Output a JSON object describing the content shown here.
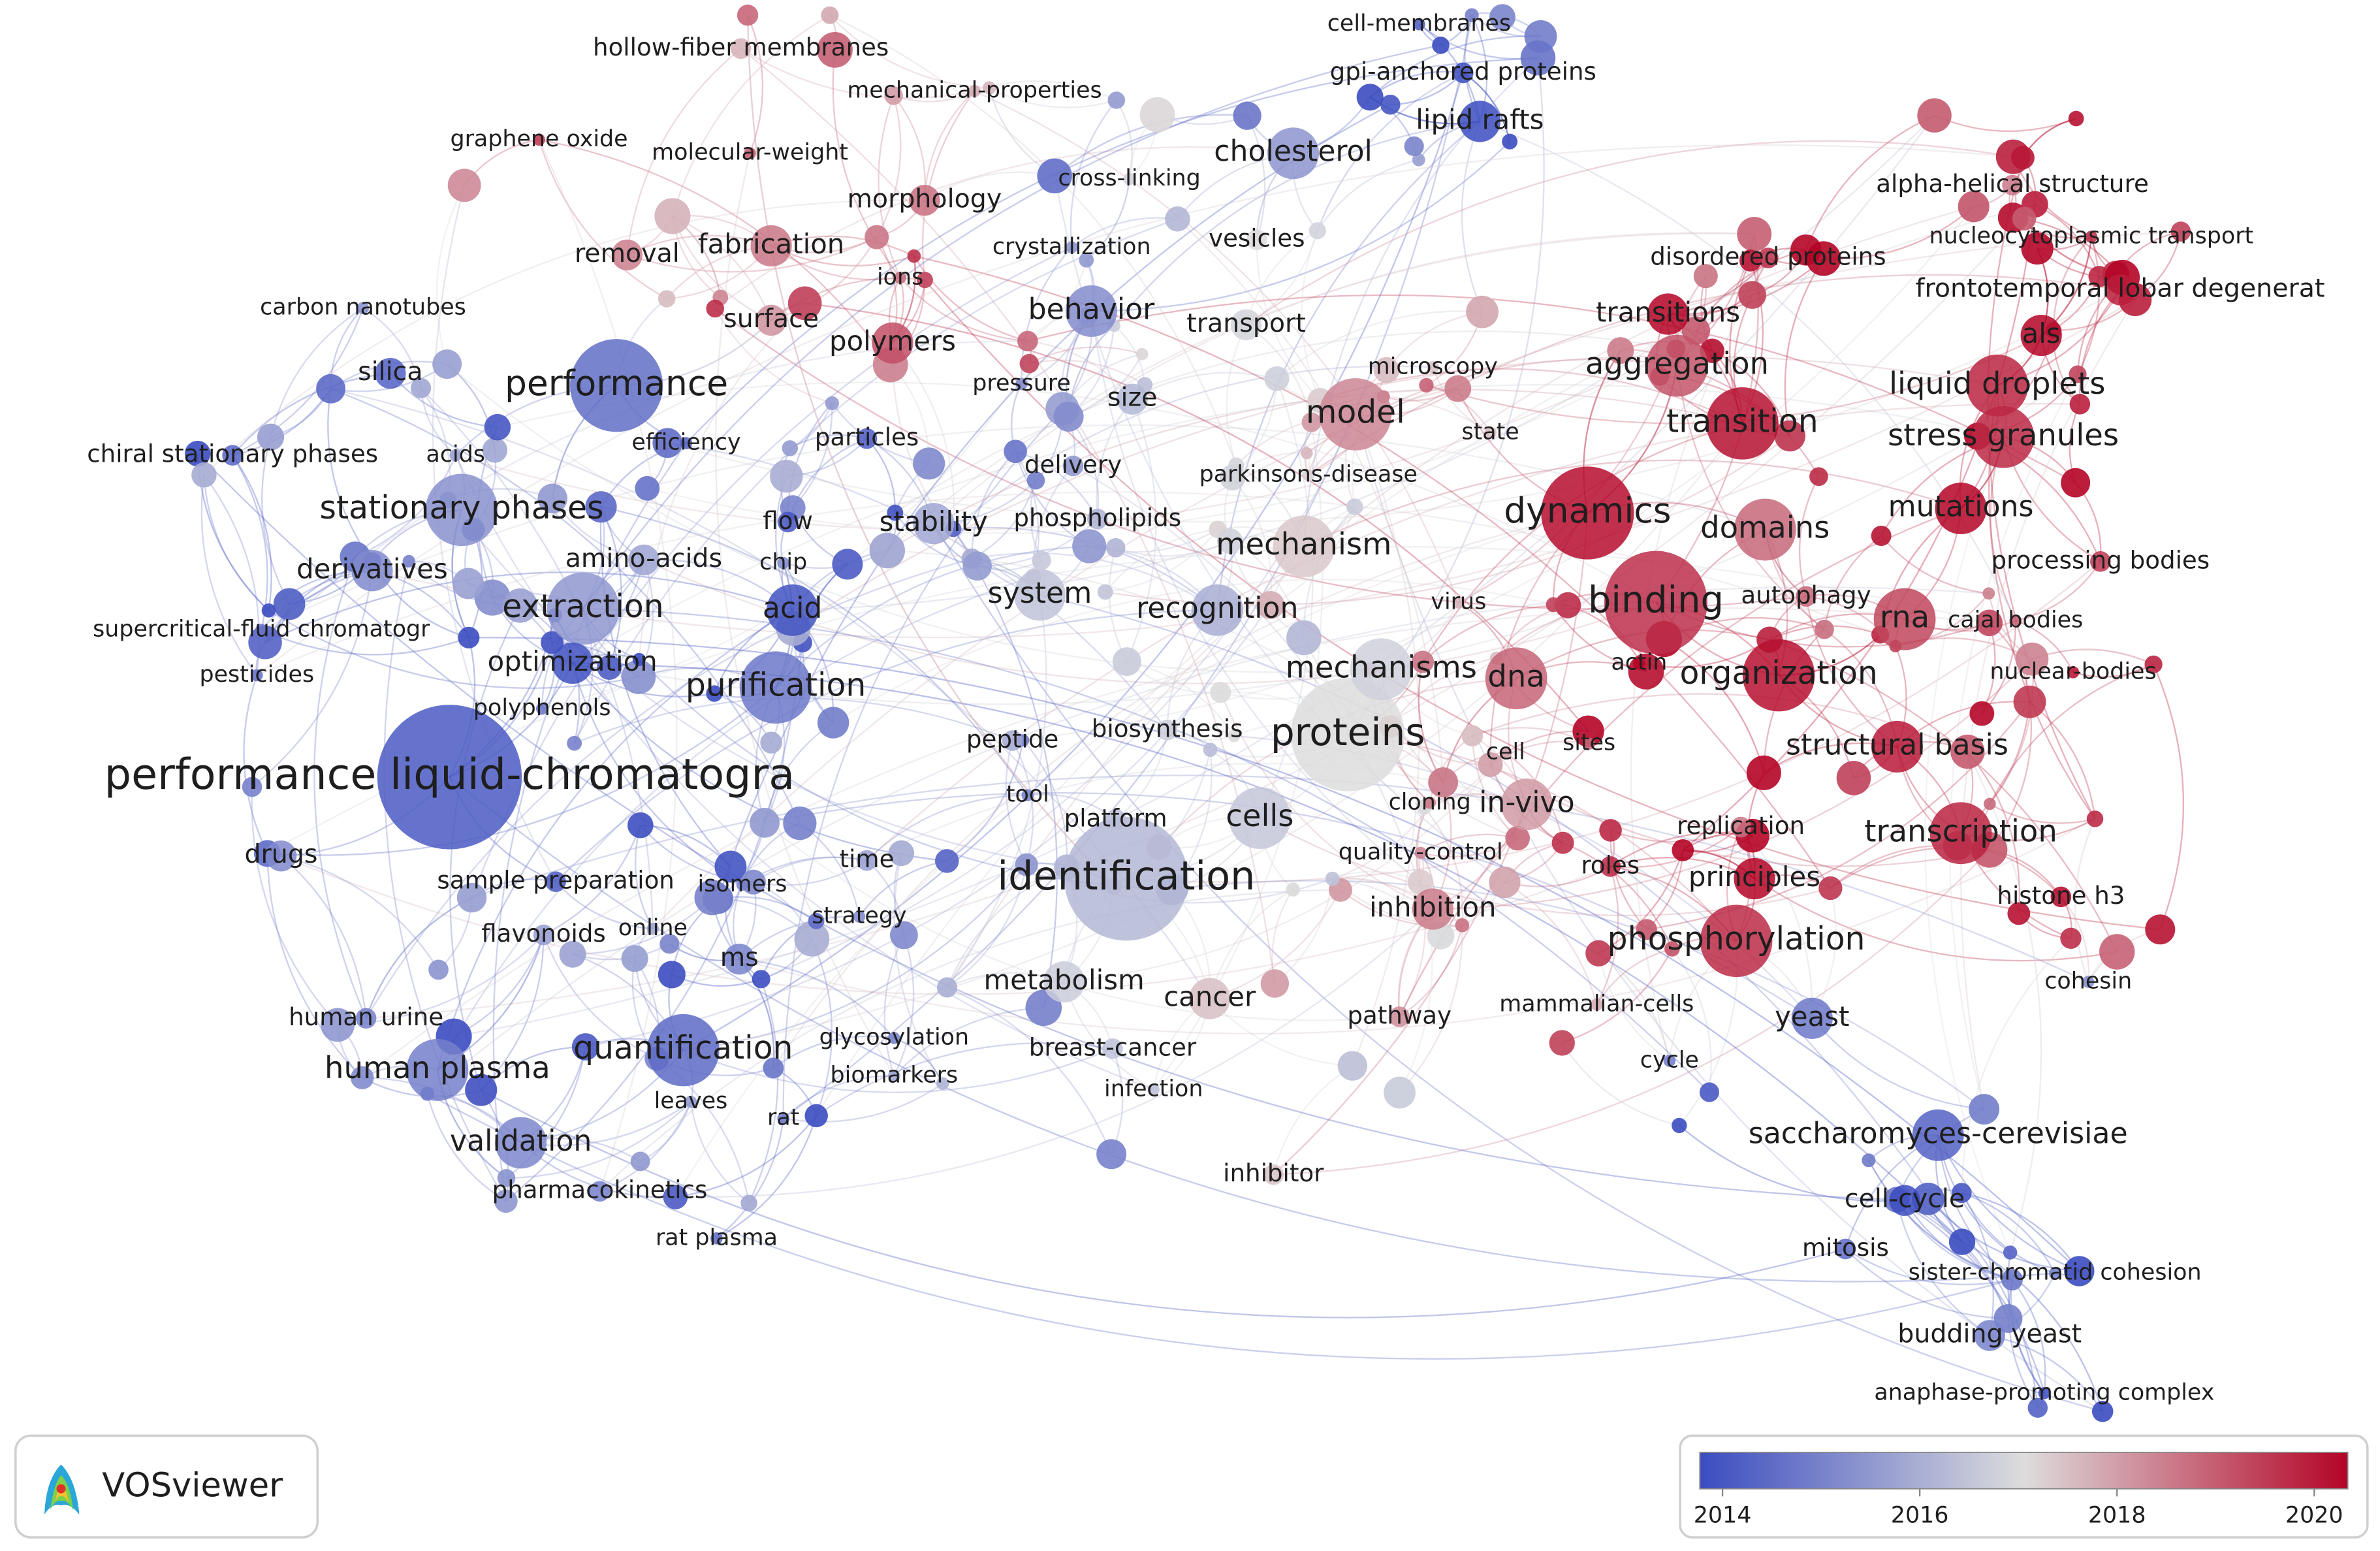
{
  "nodes": [
    {
      "label": "hollow-fiber membranes"
    },
    {
      "label": "mechanical-properties"
    },
    {
      "label": "graphene oxide"
    },
    {
      "label": "molecular-weight"
    },
    {
      "label": "morphology"
    },
    {
      "label": "removal"
    },
    {
      "label": "fabrication"
    },
    {
      "label": "crystallization"
    },
    {
      "label": "ions"
    },
    {
      "label": "carbon nanotubes"
    },
    {
      "label": "surface"
    },
    {
      "label": "behavior"
    },
    {
      "label": "polymers"
    },
    {
      "label": "transport"
    },
    {
      "label": "silica"
    },
    {
      "label": "performance"
    },
    {
      "label": "pressure"
    },
    {
      "label": "size"
    },
    {
      "label": "microscopy"
    },
    {
      "label": "model"
    },
    {
      "label": "chiral stationary phases"
    },
    {
      "label": "acids"
    },
    {
      "label": "efficiency"
    },
    {
      "label": "particles"
    },
    {
      "label": "state"
    },
    {
      "label": "delivery"
    },
    {
      "label": "parkinsons-disease"
    },
    {
      "label": "stationary phases"
    },
    {
      "label": "flow"
    },
    {
      "label": "stability"
    },
    {
      "label": "phospholipids"
    },
    {
      "label": "mechanism"
    },
    {
      "label": "derivatives"
    },
    {
      "label": "amino-acids"
    },
    {
      "label": "chip"
    },
    {
      "label": "system"
    },
    {
      "label": "extraction"
    },
    {
      "label": "acid"
    },
    {
      "label": "recognition"
    },
    {
      "label": "virus"
    },
    {
      "label": "supercritical-fluid chromatogr"
    },
    {
      "label": "optimization"
    },
    {
      "label": "mechanisms"
    },
    {
      "label": "dna"
    },
    {
      "label": "pesticides"
    },
    {
      "label": "polyphenols"
    },
    {
      "label": "purification"
    },
    {
      "label": "actin"
    },
    {
      "label": "peptide"
    },
    {
      "label": "biosynthesis"
    },
    {
      "label": "proteins"
    },
    {
      "label": "cell"
    },
    {
      "label": "sites"
    },
    {
      "label": "performance liquid-chromatogra"
    },
    {
      "label": "cloning"
    },
    {
      "label": "in-vivo"
    },
    {
      "label": "tool"
    },
    {
      "label": "platform"
    },
    {
      "label": "cells"
    },
    {
      "label": "replication"
    },
    {
      "label": "drugs"
    },
    {
      "label": "time"
    },
    {
      "label": "identification"
    },
    {
      "label": "quality-control"
    },
    {
      "label": "roles"
    },
    {
      "label": "principles"
    },
    {
      "label": "sample preparation"
    },
    {
      "label": "isomers"
    },
    {
      "label": "strategy"
    },
    {
      "label": "flavonoids"
    },
    {
      "label": "online"
    },
    {
      "label": "inhibition"
    },
    {
      "label": "ms"
    },
    {
      "label": "metabolism"
    },
    {
      "label": "cancer"
    },
    {
      "label": "human urine"
    },
    {
      "label": "pathway"
    },
    {
      "label": "mammalian-cells"
    },
    {
      "label": "glycosylation"
    },
    {
      "label": "quantification"
    },
    {
      "label": "breast-cancer"
    },
    {
      "label": "human plasma"
    },
    {
      "label": "cycle"
    },
    {
      "label": "biomarkers"
    },
    {
      "label": "infection"
    },
    {
      "label": "leaves"
    },
    {
      "label": "rat"
    },
    {
      "label": "validation"
    },
    {
      "label": "inhibitor"
    },
    {
      "label": "pharmacokinetics"
    },
    {
      "label": "rat plasma"
    },
    {
      "label": "cell-membranes"
    },
    {
      "label": "gpi-anchored proteins"
    },
    {
      "label": "lipid rafts"
    },
    {
      "label": "cholesterol"
    },
    {
      "label": "cross-linking"
    },
    {
      "label": "vesicles"
    },
    {
      "label": "alpha-helical structure"
    },
    {
      "label": "nucleocytoplasmic transport"
    },
    {
      "label": "disordered proteins"
    },
    {
      "label": "frontotemporal lobar degenerat"
    },
    {
      "label": "transitions"
    },
    {
      "label": "aggregation"
    },
    {
      "label": "als"
    },
    {
      "label": "liquid droplets"
    },
    {
      "label": "transition"
    },
    {
      "label": "stress granules"
    },
    {
      "label": "dynamics"
    },
    {
      "label": "domains"
    },
    {
      "label": "mutations"
    },
    {
      "label": "processing bodies"
    },
    {
      "label": "binding"
    },
    {
      "label": "autophagy"
    },
    {
      "label": "rna"
    },
    {
      "label": "cajal bodies"
    },
    {
      "label": "organization"
    },
    {
      "label": "nuclear-bodies"
    },
    {
      "label": "structural basis"
    },
    {
      "label": "transcription"
    },
    {
      "label": "histone h3"
    },
    {
      "label": "phosphorylation"
    },
    {
      "label": "yeast"
    },
    {
      "label": "cohesin"
    },
    {
      "label": "saccharomyces-cerevisiae"
    },
    {
      "label": "cell-cycle"
    },
    {
      "label": "mitosis"
    },
    {
      "label": "sister-chromatid cohesion"
    },
    {
      "label": "budding yeast"
    },
    {
      "label": "anaphase-promoting complex"
    }
  ],
  "logo": {
    "text": "VOSviewer"
  },
  "colorbar": {
    "lim": [
      2013.77,
      2020.34
    ],
    "ticks": [
      2014,
      2016,
      2018,
      2020
    ]
  }
}
